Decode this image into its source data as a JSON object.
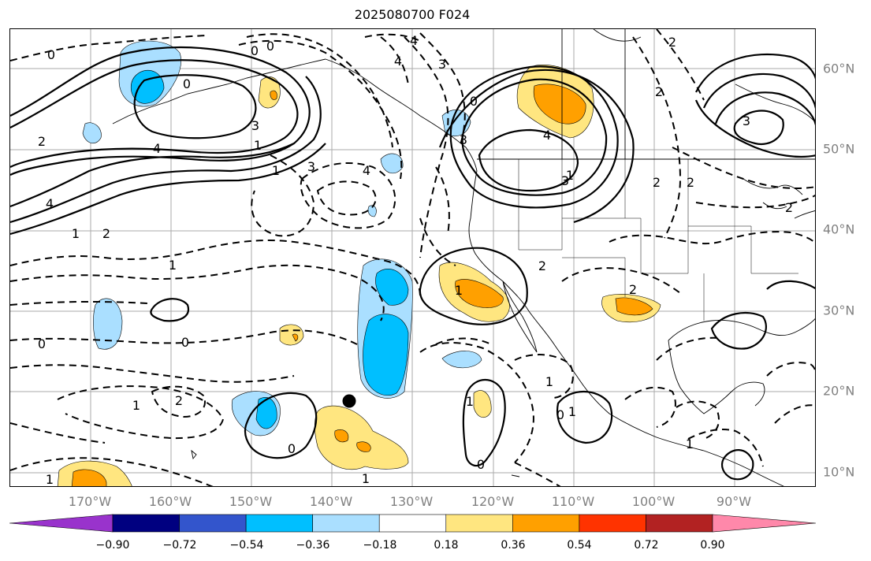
{
  "title": "2025080700 F024",
  "lat_labels": [
    "60°N",
    "50°N",
    "40°N",
    "30°N",
    "20°N",
    "10°N"
  ],
  "lon_labels": [
    "170°W",
    "160°W",
    "150°W",
    "140°W",
    "130°W",
    "120°W",
    "110°W",
    "100°W",
    "90°W"
  ],
  "colorbar": {
    "ticks": [
      "−0.90",
      "−0.72",
      "−0.54",
      "−0.36",
      "−0.18",
      "0.18",
      "0.36",
      "0.54",
      "0.72",
      "0.90"
    ],
    "colors": [
      "#9933cc",
      "#000080",
      "#3355cc",
      "#00bfff",
      "#aadfff",
      "#ffffff",
      "#ffe680",
      "#ffa000",
      "#ff3300",
      "#b22222",
      "#ff88aa"
    ]
  },
  "contour_labels": [
    "0",
    "0",
    "0",
    "0",
    "0",
    "0",
    "0",
    "0",
    "0",
    "0",
    "1",
    "1",
    "1",
    "1",
    "1",
    "1",
    "1",
    "1",
    "1",
    "1",
    "1",
    "1",
    "1",
    "2",
    "2",
    "2",
    "2",
    "2",
    "2",
    "2",
    "2",
    "2",
    "2",
    "3",
    "3",
    "3",
    "3",
    "3",
    "3",
    "4",
    "4",
    "4",
    "4",
    "4",
    "4"
  ]
}
